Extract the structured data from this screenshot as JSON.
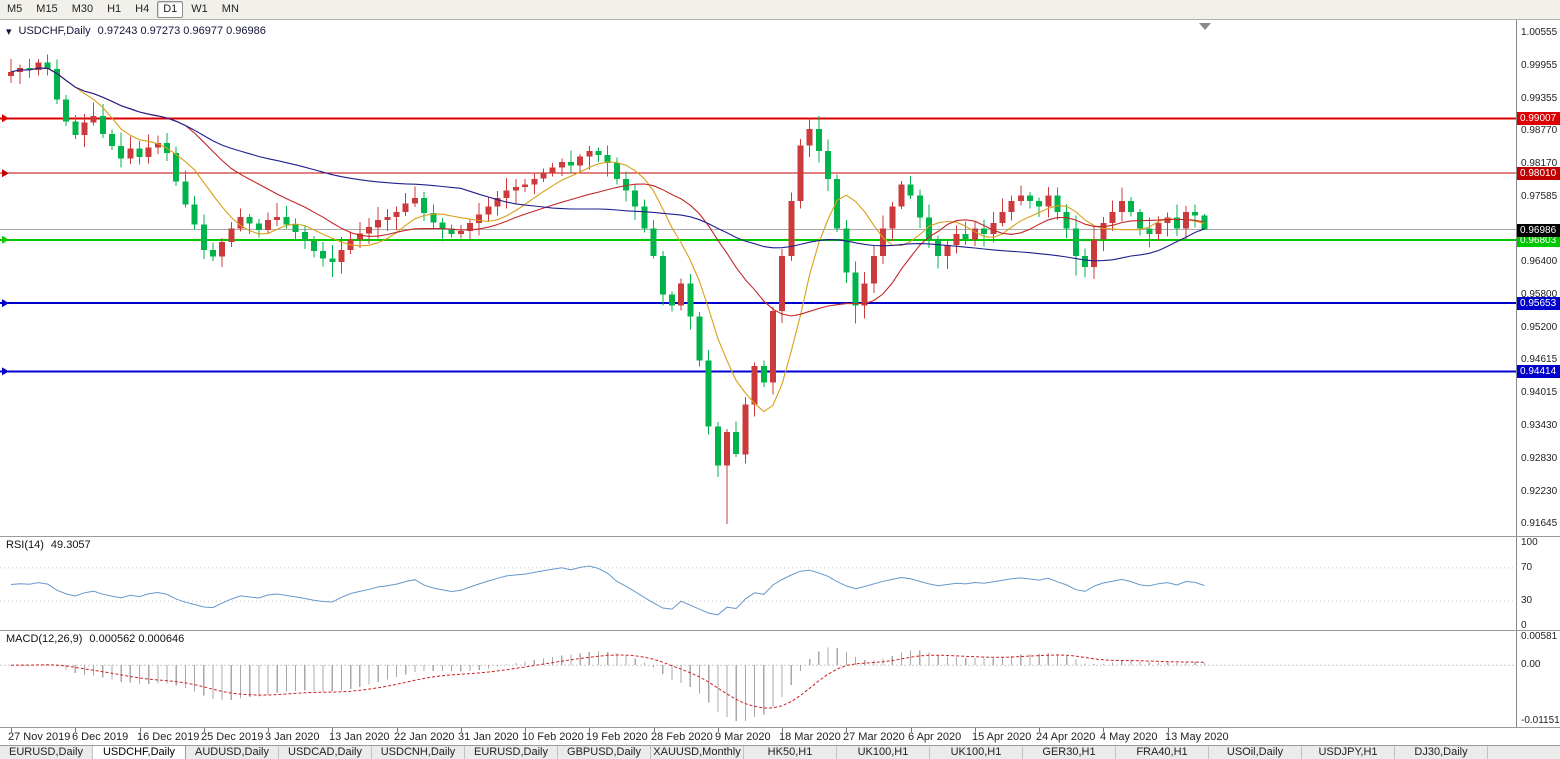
{
  "icons": {
    "dropdown": "▾"
  },
  "toolbar": {
    "timeframes": [
      "M5",
      "M15",
      "M30",
      "H1",
      "H4",
      "D1",
      "W1",
      "MN"
    ],
    "active": "D1"
  },
  "chart_data": {
    "type": "candlestick",
    "symbol": "USDCHF",
    "timeframe": "Daily",
    "title": "USDCHF,Daily",
    "ohlc_text": "0.97243 0.97273 0.96977 0.96986",
    "ylim": [
      0.91427,
      1.00791
    ],
    "price_ticks": [
      "1.00555",
      "0.99955",
      "0.99355",
      "0.98770",
      "0.98170",
      "0.97585",
      "0.96400",
      "0.95800",
      "0.95200",
      "0.94615",
      "0.94015",
      "0.93430",
      "0.92830",
      "0.92230",
      "0.91645"
    ],
    "x_labels": [
      {
        "i": 0,
        "t": "27 Nov 2019"
      },
      {
        "i": 7,
        "t": "6 Dec 2019"
      },
      {
        "i": 14,
        "t": "16 Dec 2019"
      },
      {
        "i": 21,
        "t": "25 Dec 2019"
      },
      {
        "i": 28,
        "t": "3 Jan 2020"
      },
      {
        "i": 35,
        "t": "13 Jan 2020"
      },
      {
        "i": 42,
        "t": "22 Jan 2020"
      },
      {
        "i": 49,
        "t": "31 Jan 2020"
      },
      {
        "i": 56,
        "t": "10 Feb 2020"
      },
      {
        "i": 63,
        "t": "19 Feb 2020"
      },
      {
        "i": 70,
        "t": "28 Feb 2020"
      },
      {
        "i": 77,
        "t": "9 Mar 2020"
      },
      {
        "i": 84,
        "t": "18 Mar 2020"
      },
      {
        "i": 91,
        "t": "27 Mar 2020"
      },
      {
        "i": 98,
        "t": "6 Apr 2020"
      },
      {
        "i": 105,
        "t": "15 Apr 2020"
      },
      {
        "i": 112,
        "t": "24 Apr 2020"
      },
      {
        "i": 119,
        "t": "4 May 2020"
      },
      {
        "i": 126,
        "t": "13 May 2020"
      }
    ],
    "candles": {
      "first_open": 0.9978,
      "closes": [
        0.9985,
        0.9992,
        0.9988,
        1.0002,
        0.999,
        0.9935,
        0.9895,
        0.987,
        0.9893,
        0.9905,
        0.9872,
        0.985,
        0.9828,
        0.9846,
        0.983,
        0.9848,
        0.9856,
        0.9838,
        0.9786,
        0.9744,
        0.9708,
        0.9662,
        0.965,
        0.9676,
        0.9701,
        0.9722,
        0.971,
        0.9698,
        0.9716,
        0.9722,
        0.9708,
        0.9694,
        0.9678,
        0.966,
        0.9646,
        0.964,
        0.9662,
        0.9681,
        0.9692,
        0.9703,
        0.9716,
        0.9722,
        0.9731,
        0.9746,
        0.9756,
        0.9729,
        0.9712,
        0.9701,
        0.9691,
        0.9696,
        0.9711,
        0.9726,
        0.9741,
        0.9756,
        0.977,
        0.9776,
        0.9781,
        0.9791,
        0.9801,
        0.9811,
        0.9821,
        0.9815,
        0.9831,
        0.9841,
        0.9834,
        0.982,
        0.9791,
        0.977,
        0.9741,
        0.9701,
        0.9651,
        0.9581,
        0.9561,
        0.9601,
        0.9541,
        0.9461,
        0.9341,
        0.9271,
        0.9331,
        0.9291,
        0.9381,
        0.9451,
        0.9421,
        0.9551,
        0.9651,
        0.9751,
        0.9851,
        0.9881,
        0.9841,
        0.9791,
        0.9701,
        0.9621,
        0.9561,
        0.9601,
        0.9651,
        0.9701,
        0.9741,
        0.9781,
        0.9761,
        0.9721,
        0.9681,
        0.9651,
        0.9671,
        0.9691,
        0.9681,
        0.9701,
        0.9691,
        0.9711,
        0.9731,
        0.9751,
        0.9761,
        0.9751,
        0.9741,
        0.9761,
        0.9731,
        0.9701,
        0.9651,
        0.9631,
        0.9681,
        0.9711,
        0.9731,
        0.9751,
        0.9731,
        0.9701,
        0.9691,
        0.9711,
        0.9721,
        0.9701,
        0.9731,
        0.97243,
        0.96986
      ],
      "overrides": {
        "3": {
          "high": 1.0008
        },
        "35": {
          "low": 0.9613
        },
        "63": {
          "high": 0.985
        },
        "78": {
          "low": 0.91645
        },
        "87": {
          "high": 0.9901
        },
        "92": {
          "low": 0.9528
        },
        "116": {
          "low": 0.9615
        },
        "130": {
          "high": 0.97273,
          "low": 0.96977
        }
      }
    },
    "moving_averages": [
      {
        "period": 8,
        "color": "#d8a018"
      },
      {
        "period": 20,
        "color": "#c22828"
      },
      {
        "period": 50,
        "color": "#1f1f8f"
      }
    ],
    "h_lines": [
      {
        "price": 0.99007,
        "label": "0.99007",
        "color": "#dd0000",
        "width": 2
      },
      {
        "price": 0.9801,
        "label": "0.98010",
        "color": "#c00000",
        "width": 1
      },
      {
        "price": 0.96803,
        "label": "0.96803",
        "color": "#00c800",
        "width": 2
      },
      {
        "price": 0.95653,
        "label": "0.95653",
        "color": "#0000cc",
        "width": 2
      },
      {
        "price": 0.94414,
        "label": "0.94414",
        "color": "#0000cc",
        "width": 2
      }
    ],
    "current_price": {
      "value": 0.96986,
      "label": "0.96986"
    },
    "colors": {
      "up": "#cc3b3b",
      "down": "#00b44c"
    }
  },
  "rsi": {
    "name": "RSI(14)",
    "value": "49.3057",
    "levels": [
      "100",
      "70",
      "30",
      "0"
    ],
    "line_color": "#6699cc"
  },
  "macd": {
    "name": "MACD(12,26,9)",
    "values": "0.000562 0.000646",
    "axis_labels": [
      "0.00581",
      "0.00",
      "-0.01151"
    ],
    "range": [
      -0.01151,
      0.00581
    ],
    "histogram_color": "#a8a8a8",
    "signal_color": "#cc2222"
  },
  "tabs": {
    "items": [
      "EURUSD,Daily",
      "USDCHF,Daily",
      "AUDUSD,Daily",
      "USDCAD,Daily",
      "USDCNH,Daily",
      "EURUSD,Daily",
      "GBPUSD,Daily",
      "XAUUSD,Monthly",
      "HK50,H1",
      "UK100,H1",
      "UK100,H1",
      "GER30,H1",
      "FRA40,H1",
      "USOil,Daily",
      "USDJPY,H1",
      "DJ30,Daily"
    ],
    "active_index": 1
  }
}
